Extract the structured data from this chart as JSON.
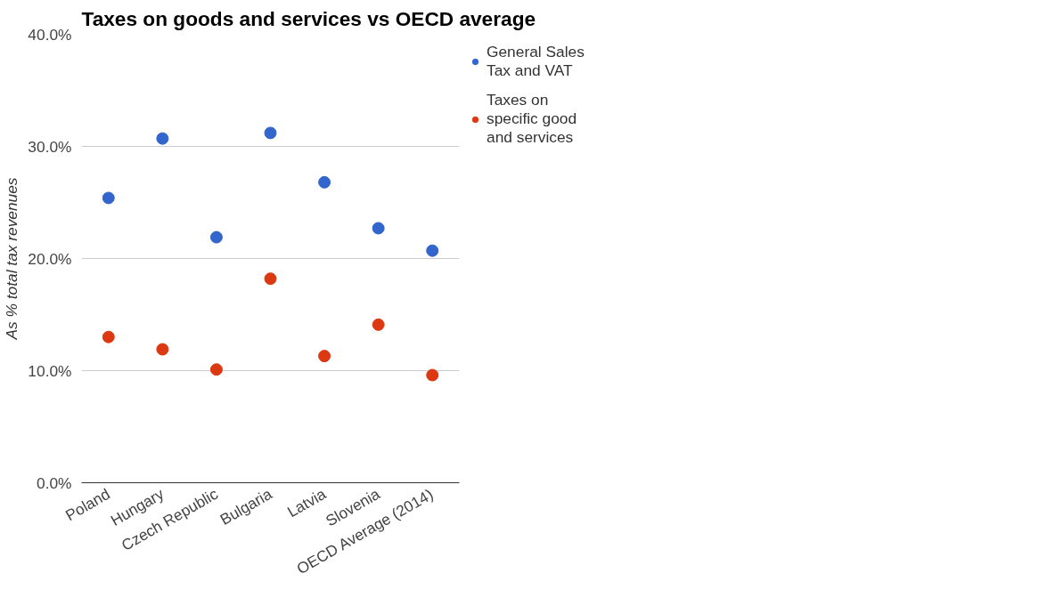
{
  "chart_data": {
    "type": "scatter",
    "title": "Taxes on goods and services vs OECD average",
    "ylabel": "As % total tax revenues",
    "categories": [
      "Poland",
      "Hungary",
      "Czech Republic",
      "Bulgaria",
      "Latvia",
      "Slovenia",
      "OECD Average (2014)"
    ],
    "series": [
      {
        "name": "General Sales Tax and VAT",
        "color": "#3366cc",
        "values": [
          25.4,
          30.7,
          21.9,
          31.2,
          26.8,
          22.7,
          20.7
        ]
      },
      {
        "name": "Taxes on specific good and services",
        "color": "#dc3912",
        "values": [
          13.0,
          11.9,
          10.1,
          18.2,
          11.3,
          14.1,
          9.6
        ]
      }
    ],
    "ylim": [
      0,
      40
    ],
    "yticks": [
      {
        "value": 0,
        "label": "0.0%"
      },
      {
        "value": 10,
        "label": "10.0%"
      },
      {
        "value": 20,
        "label": "20.0%"
      },
      {
        "value": 30,
        "label": "30.0%"
      },
      {
        "value": 40,
        "label": "40.0%"
      }
    ],
    "grid": "y",
    "legend": "top right",
    "marker": "circle"
  }
}
